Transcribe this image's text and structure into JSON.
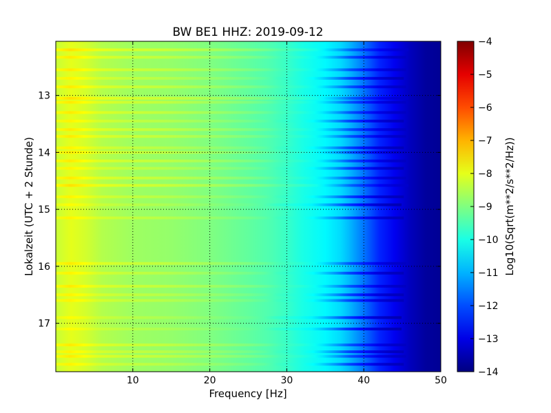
{
  "chart_data": {
    "type": "heatmap",
    "title": "BW BE1 HHZ: 2019-09-12",
    "xlabel": "Frequency [Hz]",
    "ylabel": "Lokalzeit (UTC + 2 Stunde)",
    "xlim": [
      0,
      50
    ],
    "ylim": [
      17.85,
      12.05
    ],
    "xticks": [
      10,
      20,
      30,
      40,
      50
    ],
    "xtick_labels": [
      "10",
      "20",
      "30",
      "40",
      "50"
    ],
    "yticks": [
      13,
      14,
      15,
      16,
      17
    ],
    "ytick_labels": [
      "13",
      "14",
      "15",
      "16",
      "17"
    ],
    "grid": true,
    "colormap": "jet",
    "colorbar": {
      "label": "Log10(Sqrt(m**2/s**2/Hz))",
      "range": [
        -14,
        -4
      ],
      "ticks": [
        -4,
        -5,
        -6,
        -7,
        -8,
        -9,
        -10,
        -11,
        -12,
        -13,
        -14
      ],
      "tick_labels": [
        "−4",
        "−5",
        "−6",
        "−7",
        "−8",
        "−9",
        "−10",
        "−11",
        "−12",
        "−13",
        "−14"
      ]
    },
    "spectrum_profile": {
      "frequency_hz": [
        0,
        2,
        3,
        4,
        6,
        10,
        15,
        20,
        25,
        28,
        30,
        32,
        35,
        37,
        38,
        40,
        42,
        44,
        46,
        48,
        50
      ],
      "log10_amplitude": [
        -8.3,
        -8.0,
        -8.1,
        -8.2,
        -8.5,
        -8.7,
        -8.8,
        -9.0,
        -9.3,
        -9.5,
        -9.7,
        -10.0,
        -10.3,
        -10.6,
        -10.9,
        -11.6,
        -12.4,
        -12.9,
        -13.4,
        -13.7,
        -13.8
      ]
    },
    "bands": [
      {
        "time": 12.2,
        "level": 0.6
      },
      {
        "time": 12.33,
        "level": 0.5
      },
      {
        "time": 12.55,
        "level": 0.5
      },
      {
        "time": 12.7,
        "level": 0.4
      },
      {
        "time": 12.85,
        "level": 0.5
      },
      {
        "time": 13.05,
        "level": 0.6
      },
      {
        "time": 13.12,
        "level": 0.5
      },
      {
        "time": 13.3,
        "level": 0.5
      },
      {
        "time": 13.45,
        "level": 0.4
      },
      {
        "time": 13.6,
        "level": 0.5
      },
      {
        "time": 13.72,
        "level": 0.5
      },
      {
        "time": 13.92,
        "level": 0.4
      },
      {
        "time": 14.0,
        "level": 0.5
      },
      {
        "time": 14.15,
        "level": 0.5
      },
      {
        "time": 14.28,
        "level": 0.4
      },
      {
        "time": 14.45,
        "level": 0.5
      },
      {
        "time": 14.58,
        "level": 0.6
      },
      {
        "time": 14.78,
        "level": 0.4
      },
      {
        "time": 14.92,
        "level": 0.3
      },
      {
        "time": 15.15,
        "level": 0.4
      },
      {
        "time": 15.95,
        "level": 0.5
      },
      {
        "time": 16.12,
        "level": 0.4
      },
      {
        "time": 16.35,
        "level": 0.5
      },
      {
        "time": 16.5,
        "level": 0.4
      },
      {
        "time": 16.6,
        "level": 0.4
      },
      {
        "time": 16.9,
        "level": 0.3
      },
      {
        "time": 17.1,
        "level": 0.3
      },
      {
        "time": 17.38,
        "level": 0.5
      },
      {
        "time": 17.5,
        "level": 0.4
      },
      {
        "time": 17.58,
        "level": 0.5
      },
      {
        "time": 17.72,
        "level": 0.4
      }
    ]
  }
}
